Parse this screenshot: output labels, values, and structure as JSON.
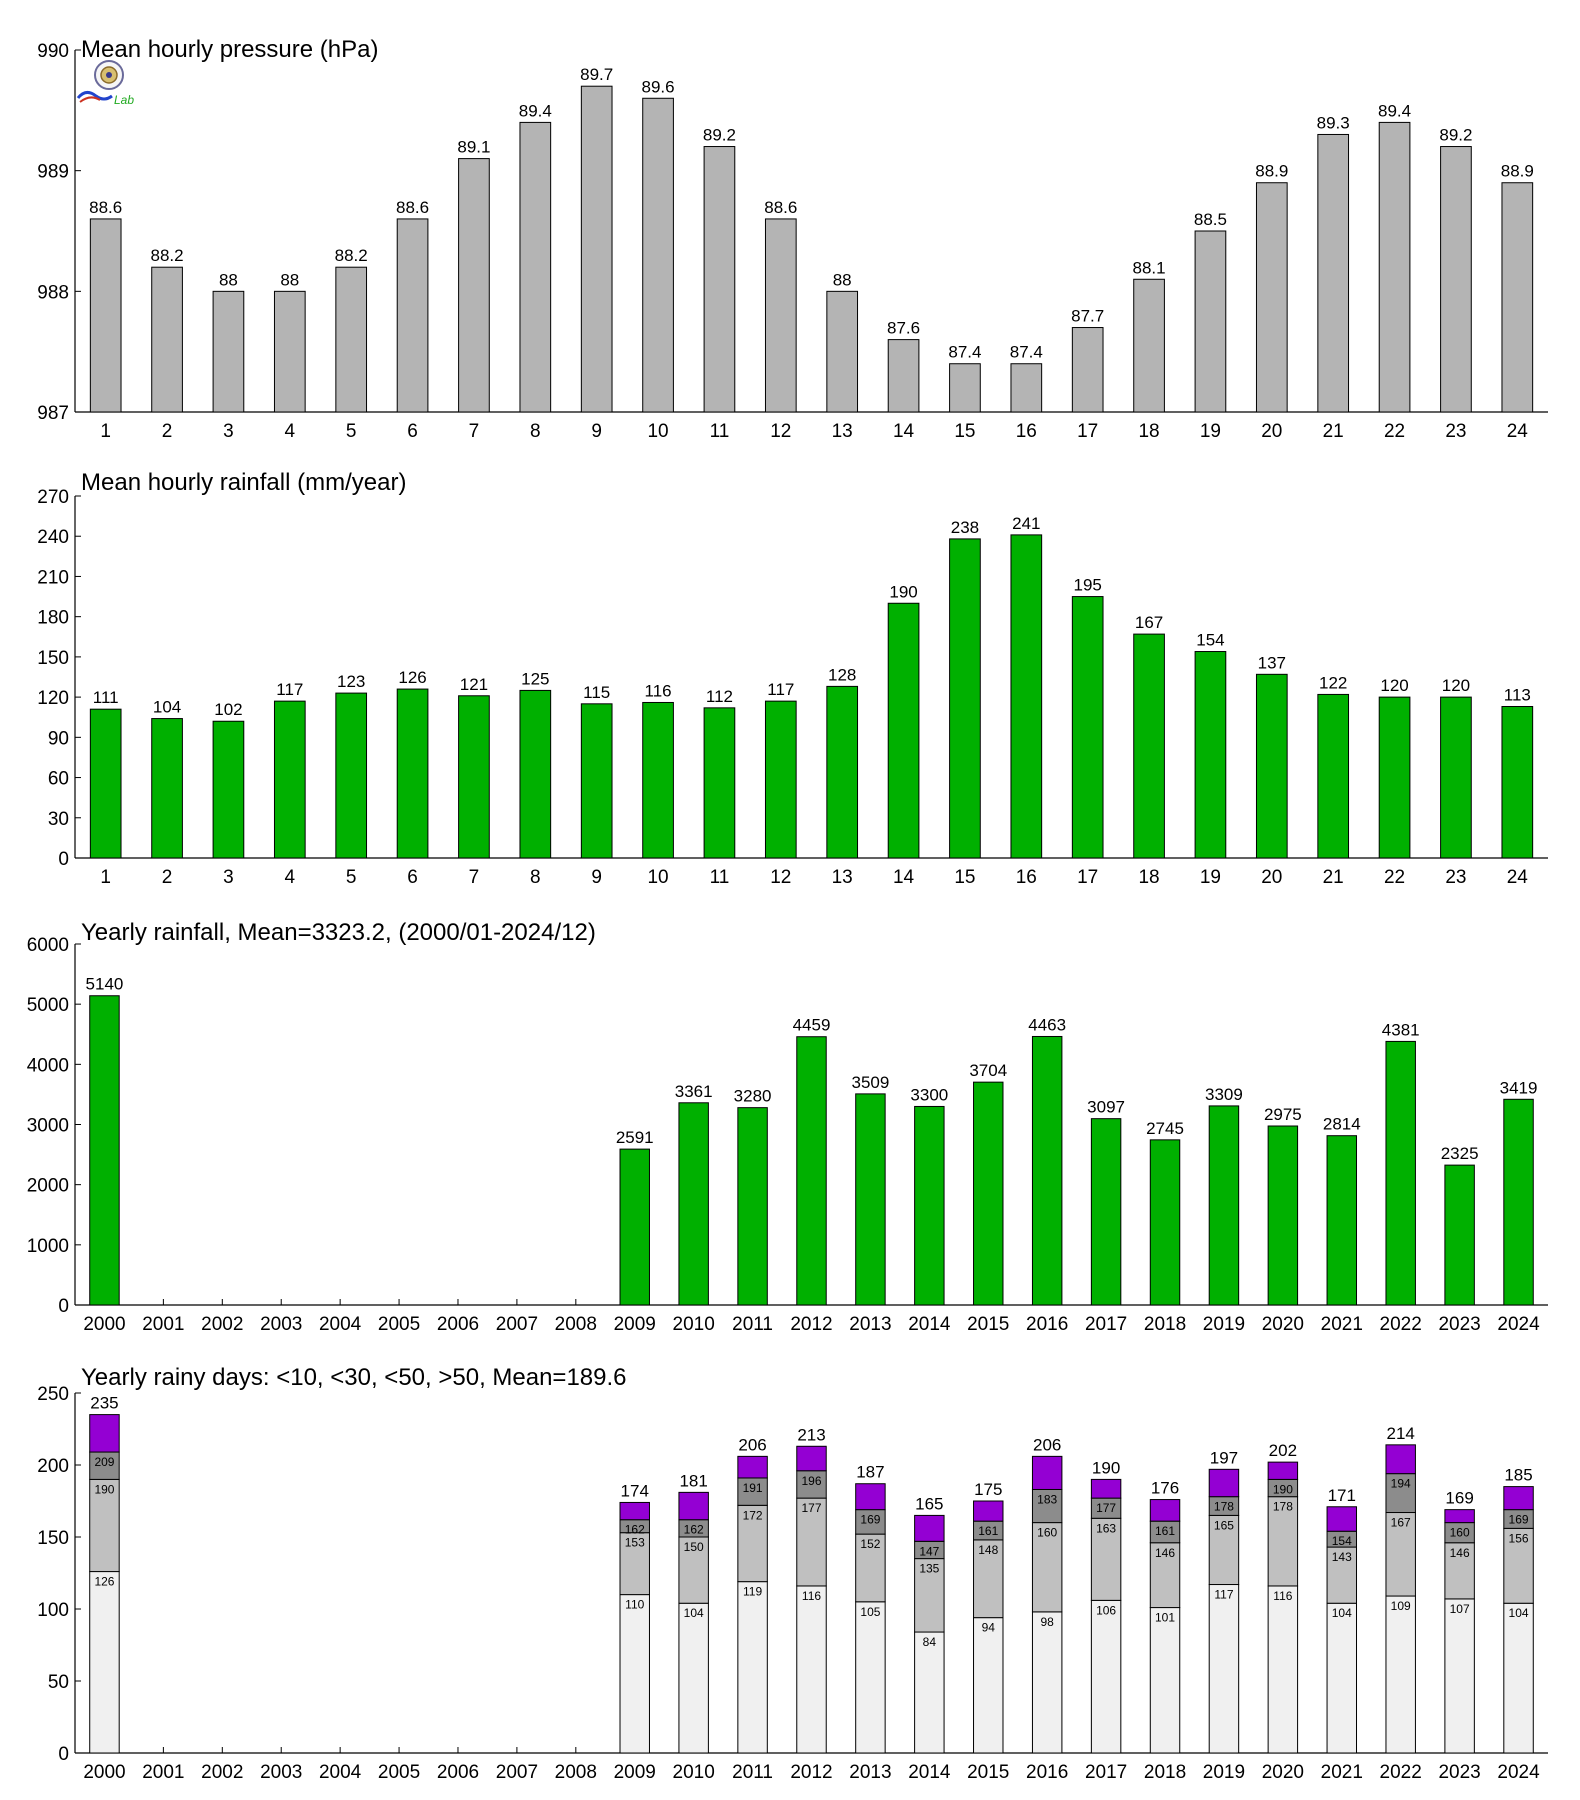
{
  "colors": {
    "pressure_bar": "#b4b4b4",
    "rain_bar": "#00b000",
    "bar_edge": "#000000",
    "seg_lt10": "#f0f0f0",
    "seg_lt30": "#c0c0c0",
    "seg_lt50": "#8c8c8c",
    "seg_gt50": "#9400d3"
  },
  "logo": {
    "text": "Lab",
    "icon": "weather-lab-logo"
  },
  "chart_data": [
    {
      "type": "bar",
      "title": "Mean hourly pressure (hPa)",
      "categories": [
        "1",
        "2",
        "3",
        "4",
        "5",
        "6",
        "7",
        "8",
        "9",
        "10",
        "11",
        "12",
        "13",
        "14",
        "15",
        "16",
        "17",
        "18",
        "19",
        "20",
        "21",
        "22",
        "23",
        "24"
      ],
      "values": [
        988.6,
        988.2,
        988.0,
        988.0,
        988.2,
        988.6,
        989.1,
        989.4,
        989.7,
        989.6,
        989.2,
        988.6,
        988.0,
        987.6,
        987.4,
        987.4,
        987.7,
        988.1,
        988.5,
        988.9,
        989.3,
        989.4,
        989.2,
        988.9
      ],
      "labels": [
        "88.6",
        "88.2",
        "88",
        "88",
        "88.2",
        "88.6",
        "89.1",
        "89.4",
        "89.7",
        "89.6",
        "89.2",
        "88.6",
        "88",
        "87.6",
        "87.4",
        "87.4",
        "87.7",
        "88.1",
        "88.5",
        "88.9",
        "89.3",
        "89.4",
        "89.2",
        "88.9"
      ],
      "ylim": [
        987,
        990
      ],
      "yticks": [
        987,
        988,
        989,
        990
      ]
    },
    {
      "type": "bar",
      "title": "Mean hourly rainfall (mm/year)",
      "categories": [
        "1",
        "2",
        "3",
        "4",
        "5",
        "6",
        "7",
        "8",
        "9",
        "10",
        "11",
        "12",
        "13",
        "14",
        "15",
        "16",
        "17",
        "18",
        "19",
        "20",
        "21",
        "22",
        "23",
        "24"
      ],
      "values": [
        111,
        104,
        102,
        117,
        123,
        126,
        121,
        125,
        115,
        116,
        112,
        117,
        128,
        190,
        238,
        241,
        195,
        167,
        154,
        137,
        122,
        120,
        120,
        113
      ],
      "ylim": [
        0,
        270
      ],
      "yticks": [
        0,
        30,
        60,
        90,
        120,
        150,
        180,
        210,
        240,
        270
      ]
    },
    {
      "type": "bar",
      "title": "Yearly rainfall, Mean=3323.2, (2000/01-2024/12)",
      "categories": [
        "2000",
        "2001",
        "2002",
        "2003",
        "2004",
        "2005",
        "2006",
        "2007",
        "2008",
        "2009",
        "2010",
        "2011",
        "2012",
        "2013",
        "2014",
        "2015",
        "2016",
        "2017",
        "2018",
        "2019",
        "2020",
        "2021",
        "2022",
        "2023",
        "2024"
      ],
      "values": [
        5140,
        null,
        null,
        null,
        null,
        null,
        null,
        null,
        null,
        2591,
        3361,
        3280,
        4459,
        3509,
        3300,
        3704,
        4463,
        3097,
        2745,
        3309,
        2975,
        2814,
        4381,
        2325,
        3419
      ],
      "ylim": [
        0,
        6000
      ],
      "yticks": [
        0,
        1000,
        2000,
        3000,
        4000,
        5000,
        6000
      ]
    },
    {
      "type": "bar",
      "stacked": true,
      "title": "Yearly rainy days: <10, <30, <50, >50, Mean=189.6",
      "categories": [
        "2000",
        "2001",
        "2002",
        "2003",
        "2004",
        "2005",
        "2006",
        "2007",
        "2008",
        "2009",
        "2010",
        "2011",
        "2012",
        "2013",
        "2014",
        "2015",
        "2016",
        "2017",
        "2018",
        "2019",
        "2020",
        "2021",
        "2022",
        "2023",
        "2024"
      ],
      "cumulative": [
        [
          126,
          190,
          209,
          235
        ],
        null,
        null,
        null,
        null,
        null,
        null,
        null,
        null,
        [
          110,
          153,
          162,
          174
        ],
        [
          104,
          150,
          162,
          181
        ],
        [
          119,
          172,
          191,
          206
        ],
        [
          116,
          177,
          196,
          213
        ],
        [
          105,
          152,
          169,
          187
        ],
        [
          84,
          135,
          147,
          165
        ],
        [
          94,
          148,
          161,
          175
        ],
        [
          98,
          160,
          183,
          206
        ],
        [
          106,
          163,
          177,
          190
        ],
        [
          101,
          146,
          161,
          176
        ],
        [
          117,
          165,
          178,
          197
        ],
        [
          116,
          178,
          190,
          202
        ],
        [
          104,
          143,
          154,
          171
        ],
        [
          109,
          167,
          194,
          214
        ],
        [
          107,
          146,
          160,
          169
        ],
        [
          104,
          156,
          169,
          185
        ]
      ],
      "ylim": [
        0,
        250
      ],
      "yticks": [
        0,
        50,
        100,
        150,
        200,
        250
      ]
    }
  ]
}
